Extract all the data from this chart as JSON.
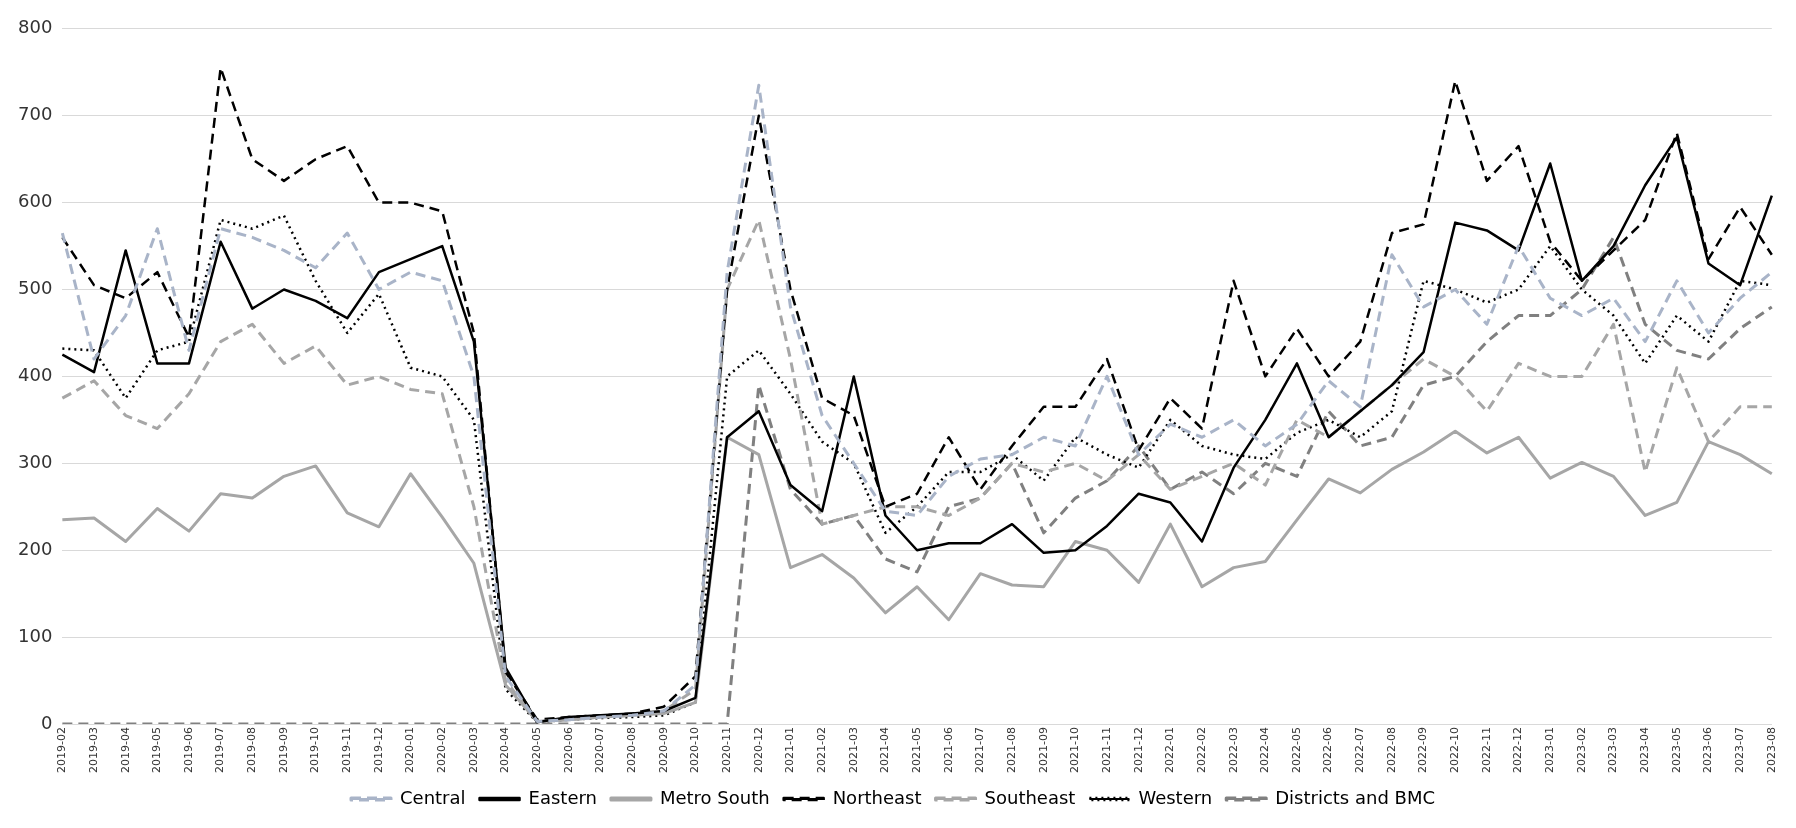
{
  "chart_data": {
    "type": "line",
    "categories": [
      "2019-02",
      "2019-03",
      "2019-04",
      "2019-05",
      "2019-06",
      "2019-07",
      "2019-08",
      "2019-09",
      "2019-10",
      "2019-11",
      "2019-12",
      "2020-01",
      "2020-02",
      "2020-03",
      "2020-04",
      "2020-05",
      "2020-06",
      "2020-07",
      "2020-08",
      "2020-09",
      "2020-10",
      "2020-11",
      "2020-12",
      "2021-01",
      "2021-02",
      "2021-03",
      "2021-04",
      "2021-05",
      "2021-06",
      "2021-07",
      "2021-08",
      "2021-09",
      "2021-10",
      "2021-11",
      "2021-12",
      "2022-01",
      "2022-02",
      "2022-03",
      "2022-04",
      "2022-05",
      "2022-06",
      "2022-07",
      "2022-08",
      "2022-09",
      "2022-10",
      "2022-11",
      "2022-12",
      "2023-01",
      "2023-02",
      "2023-03",
      "2023-04",
      "2023-05",
      "2023-06",
      "2023-07",
      "2023-08"
    ],
    "series": [
      {
        "name": "Central",
        "color": "#a9b4c8",
        "line_style": "dashed",
        "values": [
          565,
          420,
          470,
          570,
          430,
          570,
          560,
          545,
          525,
          565,
          500,
          520,
          510,
          400,
          55,
          3,
          5,
          8,
          10,
          15,
          45,
          520,
          735,
          480,
          355,
          300,
          245,
          240,
          285,
          305,
          310,
          330,
          320,
          400,
          310,
          345,
          330,
          350,
          320,
          345,
          395,
          365,
          540,
          480,
          500,
          460,
          550,
          490,
          470,
          490,
          440,
          510,
          450,
          490,
          520
        ]
      },
      {
        "name": "Eastern",
        "color": "#000000",
        "line_style": "solid",
        "values": [
          425,
          405,
          545,
          415,
          415,
          555,
          478,
          500,
          487,
          467,
          520,
          535,
          550,
          440,
          65,
          2,
          8,
          10,
          12,
          15,
          30,
          330,
          360,
          275,
          245,
          400,
          240,
          200,
          208,
          208,
          230,
          197,
          200,
          228,
          265,
          255,
          210,
          295,
          350,
          415,
          330,
          360,
          390,
          428,
          577,
          568,
          545,
          645,
          510,
          550,
          620,
          675,
          530,
          505,
          608
        ]
      },
      {
        "name": "Metro South",
        "color": "#a6a6a6",
        "line_style": "solid",
        "values": [
          235,
          237,
          210,
          248,
          222,
          265,
          260,
          285,
          297,
          243,
          227,
          288,
          238,
          185,
          45,
          3,
          5,
          8,
          10,
          12,
          25,
          330,
          310,
          180,
          195,
          168,
          128,
          158,
          120,
          173,
          160,
          158,
          210,
          200,
          163,
          230,
          158,
          180,
          187,
          235,
          282,
          266,
          293,
          313,
          337,
          312,
          330,
          283,
          301,
          285,
          240,
          255,
          325,
          310,
          288
        ]
      },
      {
        "name": "Northeast",
        "color": "#000000",
        "line_style": "dashed",
        "values": [
          560,
          505,
          490,
          520,
          445,
          755,
          650,
          625,
          650,
          665,
          600,
          600,
          590,
          450,
          60,
          5,
          8,
          10,
          12,
          20,
          55,
          500,
          700,
          500,
          375,
          355,
          250,
          265,
          330,
          270,
          320,
          365,
          365,
          420,
          315,
          375,
          340,
          510,
          400,
          455,
          400,
          440,
          565,
          575,
          740,
          625,
          665,
          555,
          510,
          545,
          580,
          680,
          535,
          595,
          540
        ]
      },
      {
        "name": "Southeast",
        "color": "#a6a6a6",
        "line_style": "dashed",
        "values": [
          375,
          395,
          355,
          340,
          380,
          440,
          460,
          415,
          435,
          390,
          400,
          385,
          380,
          250,
          50,
          3,
          5,
          8,
          10,
          15,
          40,
          500,
          580,
          420,
          230,
          240,
          250,
          250,
          240,
          260,
          300,
          290,
          300,
          280,
          310,
          270,
          285,
          300,
          275,
          350,
          330,
          360,
          390,
          420,
          400,
          360,
          415,
          400,
          400,
          460,
          290,
          410,
          325,
          365,
          365
        ]
      },
      {
        "name": "Western",
        "color": "#000000",
        "line_style": "dotted",
        "values": [
          432,
          430,
          375,
          430,
          440,
          580,
          570,
          585,
          510,
          450,
          495,
          410,
          400,
          350,
          40,
          2,
          5,
          7,
          8,
          10,
          25,
          400,
          430,
          380,
          325,
          300,
          220,
          250,
          290,
          290,
          310,
          280,
          330,
          310,
          295,
          350,
          320,
          310,
          305,
          335,
          350,
          330,
          360,
          510,
          500,
          485,
          500,
          550,
          500,
          470,
          415,
          470,
          440,
          510,
          505
        ]
      },
      {
        "name": "Districts and BMC",
        "color": "#808080",
        "line_style": "dashed",
        "values": [
          0,
          0,
          0,
          0,
          0,
          0,
          0,
          0,
          0,
          0,
          0,
          0,
          0,
          0,
          0,
          0,
          0,
          0,
          0,
          0,
          0,
          0,
          390,
          270,
          230,
          240,
          190,
          175,
          250,
          260,
          300,
          220,
          260,
          280,
          320,
          270,
          290,
          265,
          300,
          285,
          360,
          320,
          330,
          390,
          400,
          440,
          470,
          470,
          500,
          560,
          460,
          430,
          420,
          455,
          480
        ]
      }
    ],
    "ylim": [
      0,
      800
    ],
    "yticks": [
      0,
      100,
      200,
      300,
      400,
      500,
      600,
      700,
      800
    ],
    "grid": "y",
    "legend": "bottom",
    "marker": "none"
  }
}
